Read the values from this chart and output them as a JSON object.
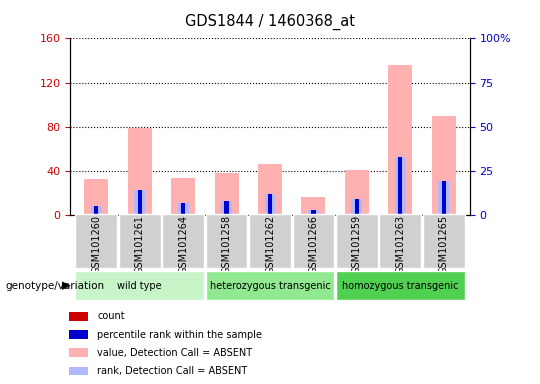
{
  "title": "GDS1844 / 1460368_at",
  "samples": [
    "GSM101260",
    "GSM101261",
    "GSM101264",
    "GSM101258",
    "GSM101262",
    "GSM101266",
    "GSM101259",
    "GSM101263",
    "GSM101265"
  ],
  "count_values": [
    3,
    2,
    5,
    2,
    3,
    1,
    2,
    5,
    3
  ],
  "percentile_rank": [
    5,
    14,
    7,
    8,
    12,
    3,
    9,
    33,
    19
  ],
  "absent_value": [
    33,
    79,
    34,
    38,
    46,
    16,
    41,
    136,
    90
  ],
  "absent_rank": [
    5,
    14,
    7,
    8,
    12,
    3,
    9,
    33,
    19
  ],
  "groups": [
    {
      "label": "wild type",
      "start": 0,
      "end": 3,
      "color": "#c8f5c8"
    },
    {
      "label": "heterozygous transgenic",
      "start": 3,
      "end": 6,
      "color": "#90e890"
    },
    {
      "label": "homozygous transgenic",
      "start": 6,
      "end": 9,
      "color": "#50d050"
    }
  ],
  "ylim_left": [
    0,
    160
  ],
  "ylim_right": [
    0,
    100
  ],
  "yticks_left": [
    0,
    40,
    80,
    120,
    160
  ],
  "yticks_right": [
    0,
    25,
    50,
    75,
    100
  ],
  "count_color": "#cc0000",
  "rank_color": "#0000cc",
  "absent_value_color": "#ffb0b0",
  "absent_rank_color": "#b0b8ff",
  "left_tick_color": "#cc0000",
  "right_tick_color": "#0000cc",
  "sample_box_color": "#d0d0d0",
  "legend_items": [
    {
      "color": "#cc0000",
      "label": "count"
    },
    {
      "color": "#0000cc",
      "label": "percentile rank within the sample"
    },
    {
      "color": "#ffb0b0",
      "label": "value, Detection Call = ABSENT"
    },
    {
      "color": "#b0b8ff",
      "label": "rank, Detection Call = ABSENT"
    }
  ]
}
